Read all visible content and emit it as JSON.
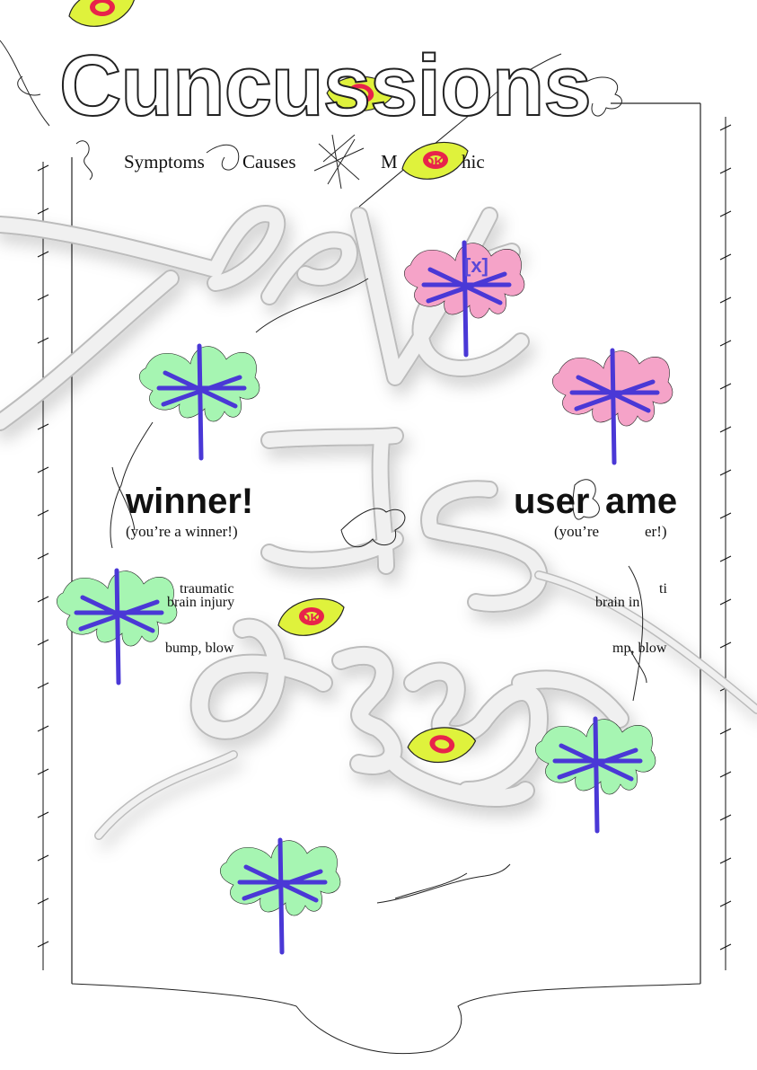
{
  "title": "Cuncussions",
  "nav": {
    "symptoms_label": "Symptoms",
    "causes_label": "Causes",
    "m_label": "M",
    "hic_label": "hic"
  },
  "left_panel": {
    "heading": "winner!",
    "subtitle": "(you’re a winner!)",
    "line1": "traumatic",
    "line2": "brain injury",
    "line3": "bump, blow"
  },
  "right_panel": {
    "heading_start": "user",
    "heading_end": "ame",
    "subtitle_start": "(you’re",
    "subtitle_end": "er!)",
    "line1_end": "ti",
    "line2_start": "brain in",
    "line3_start": "mp, blow"
  },
  "close_label": "[x]",
  "ok_badge": "OK",
  "colors": {
    "dragonfly_green": "#a6f5b2",
    "dragonfly_pink": "#f5a3c8",
    "dragonfly_body": "#4a38d6",
    "leaf_yellow": "#dff23c",
    "leaf_red": "#e8234b",
    "graffiti_fill": "#ececec"
  },
  "icons": [
    "dragonfly-icon",
    "leaf-badge-icon",
    "scribble-icon",
    "barbed-wire-icon",
    "close-icon"
  ]
}
